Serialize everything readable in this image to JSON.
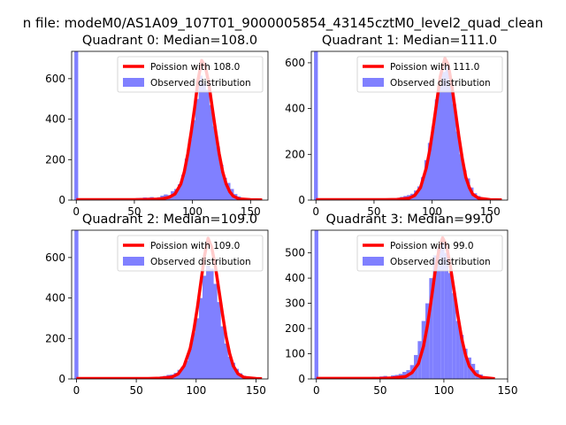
{
  "figure": {
    "suptitle": "n file: modeM0/AS1A09_107T01_9000005854_43145cztM0_level2_quad_clean"
  },
  "colors": {
    "hist": "#8080ff",
    "curve": "#ff0000",
    "axis": "#000000",
    "background": "#ffffff"
  },
  "chart_data": [
    {
      "type": "bar",
      "title": "Quadrant 0: Median=108.0",
      "xlim": [
        -4,
        165
      ],
      "ylim": [
        0,
        735
      ],
      "xticks": [
        0,
        50,
        100,
        150
      ],
      "yticks": [
        0,
        200,
        400,
        600
      ],
      "legend_position": "upper-right",
      "legend": {
        "curve": "Poission with 108.0",
        "hist": "Observed distribution"
      },
      "bin_width": 3.3,
      "spike": {
        "x": 0,
        "value": 735
      },
      "mean": 108,
      "hist": [
        [
          50,
          8
        ],
        [
          53,
          10
        ],
        [
          56,
          11
        ],
        [
          59,
          13
        ],
        [
          62,
          12
        ],
        [
          65,
          15
        ],
        [
          68,
          10
        ],
        [
          71,
          14
        ],
        [
          74,
          22
        ],
        [
          77,
          28
        ],
        [
          80,
          25
        ],
        [
          83,
          44
        ],
        [
          86,
          55
        ],
        [
          89,
          78
        ],
        [
          92,
          125
        ],
        [
          95,
          205
        ],
        [
          98,
          300
        ],
        [
          101,
          395
        ],
        [
          104,
          500
        ],
        [
          107,
          615
        ],
        [
          110,
          575
        ],
        [
          113,
          545
        ],
        [
          116,
          470
        ],
        [
          119,
          365
        ],
        [
          122,
          265
        ],
        [
          125,
          175
        ],
        [
          128,
          110
        ],
        [
          131,
          85
        ],
        [
          134,
          55
        ],
        [
          137,
          30
        ],
        [
          140,
          18
        ],
        [
          143,
          10
        ],
        [
          146,
          6
        ],
        [
          149,
          4
        ],
        [
          152,
          3
        ]
      ],
      "curve": [
        [
          0,
          2
        ],
        [
          50,
          2
        ],
        [
          60,
          3
        ],
        [
          70,
          5
        ],
        [
          75,
          8
        ],
        [
          80,
          14
        ],
        [
          85,
          30
        ],
        [
          90,
          80
        ],
        [
          93,
          140
        ],
        [
          96,
          230
        ],
        [
          99,
          340
        ],
        [
          102,
          460
        ],
        [
          105,
          600
        ],
        [
          108,
          690
        ],
        [
          111,
          660
        ],
        [
          114,
          580
        ],
        [
          117,
          460
        ],
        [
          120,
          340
        ],
        [
          123,
          230
        ],
        [
          126,
          140
        ],
        [
          129,
          80
        ],
        [
          132,
          42
        ],
        [
          135,
          20
        ],
        [
          140,
          6
        ],
        [
          150,
          2
        ],
        [
          160,
          1
        ]
      ]
    },
    {
      "type": "bar",
      "title": "Quadrant 1: Median=111.0",
      "xlim": [
        -4,
        165
      ],
      "ylim": [
        0,
        650
      ],
      "xticks": [
        0,
        50,
        100,
        150
      ],
      "yticks": [
        0,
        200,
        400,
        600
      ],
      "legend_position": "upper-right",
      "legend": {
        "curve": "Poission with 111.0",
        "hist": "Observed distribution"
      },
      "bin_width": 3.3,
      "spike": {
        "x": 0,
        "value": 650
      },
      "mean": 111,
      "hist": [
        [
          65,
          6
        ],
        [
          68,
          8
        ],
        [
          71,
          10
        ],
        [
          74,
          14
        ],
        [
          77,
          18
        ],
        [
          80,
          22
        ],
        [
          83,
          28
        ],
        [
          86,
          42
        ],
        [
          89,
          60
        ],
        [
          92,
          100
        ],
        [
          95,
          175
        ],
        [
          98,
          250
        ],
        [
          101,
          320
        ],
        [
          104,
          440
        ],
        [
          107,
          500
        ],
        [
          110,
          560
        ],
        [
          113,
          585
        ],
        [
          116,
          500
        ],
        [
          119,
          420
        ],
        [
          122,
          300
        ],
        [
          125,
          200
        ],
        [
          128,
          130
        ],
        [
          131,
          95
        ],
        [
          134,
          55
        ],
        [
          137,
          30
        ],
        [
          140,
          18
        ],
        [
          143,
          10
        ],
        [
          146,
          6
        ],
        [
          149,
          4
        ]
      ],
      "curve": [
        [
          0,
          2
        ],
        [
          60,
          2
        ],
        [
          70,
          3
        ],
        [
          80,
          8
        ],
        [
          85,
          20
        ],
        [
          90,
          55
        ],
        [
          95,
          140
        ],
        [
          98,
          220
        ],
        [
          101,
          320
        ],
        [
          104,
          430
        ],
        [
          107,
          540
        ],
        [
          111,
          620
        ],
        [
          114,
          590
        ],
        [
          117,
          500
        ],
        [
          120,
          390
        ],
        [
          123,
          280
        ],
        [
          126,
          180
        ],
        [
          129,
          100
        ],
        [
          132,
          55
        ],
        [
          135,
          25
        ],
        [
          140,
          8
        ],
        [
          150,
          2
        ],
        [
          160,
          1
        ]
      ]
    },
    {
      "type": "bar",
      "title": "Quadrant 2: Median=109.0",
      "xlim": [
        -4,
        160
      ],
      "ylim": [
        0,
        735
      ],
      "xticks": [
        0,
        50,
        100,
        150
      ],
      "yticks": [
        0,
        200,
        400,
        600
      ],
      "legend_position": "upper-right",
      "legend": {
        "curve": "Poission with 109.0",
        "hist": "Observed distribution"
      },
      "bin_width": 3.3,
      "spike": {
        "x": 0,
        "value": 735
      },
      "mean": 109,
      "hist": [
        [
          65,
          6
        ],
        [
          68,
          8
        ],
        [
          71,
          12
        ],
        [
          74,
          15
        ],
        [
          77,
          20
        ],
        [
          80,
          22
        ],
        [
          83,
          30
        ],
        [
          86,
          45
        ],
        [
          89,
          60
        ],
        [
          92,
          90
        ],
        [
          95,
          150
        ],
        [
          98,
          230
        ],
        [
          101,
          300
        ],
        [
          104,
          400
        ],
        [
          107,
          510
        ],
        [
          110,
          560
        ],
        [
          113,
          545
        ],
        [
          116,
          470
        ],
        [
          119,
          380
        ],
        [
          122,
          260
        ],
        [
          125,
          175
        ],
        [
          128,
          110
        ],
        [
          131,
          80
        ],
        [
          134,
          50
        ],
        [
          137,
          28
        ],
        [
          140,
          16
        ],
        [
          143,
          8
        ],
        [
          146,
          5
        ]
      ],
      "curve": [
        [
          0,
          2
        ],
        [
          60,
          2
        ],
        [
          70,
          4
        ],
        [
          80,
          10
        ],
        [
          85,
          25
        ],
        [
          90,
          65
        ],
        [
          95,
          150
        ],
        [
          98,
          240
        ],
        [
          101,
          350
        ],
        [
          104,
          480
        ],
        [
          107,
          610
        ],
        [
          110,
          695
        ],
        [
          113,
          650
        ],
        [
          116,
          560
        ],
        [
          119,
          440
        ],
        [
          122,
          320
        ],
        [
          125,
          210
        ],
        [
          128,
          125
        ],
        [
          131,
          65
        ],
        [
          135,
          25
        ],
        [
          140,
          8
        ],
        [
          150,
          2
        ],
        [
          155,
          1
        ]
      ]
    },
    {
      "type": "bar",
      "title": "Quadrant 3: Median=99.0",
      "xlim": [
        -4,
        150
      ],
      "ylim": [
        0,
        590
      ],
      "xticks": [
        0,
        50,
        100,
        150
      ],
      "yticks": [
        0,
        100,
        200,
        300,
        400,
        500
      ],
      "legend_position": "upper-right",
      "legend": {
        "curve": "Poission with 99.0",
        "hist": "Observed distribution"
      },
      "bin_width": 3.0,
      "spike": {
        "x": 0,
        "value": 590
      },
      "mean": 99,
      "hist": [
        [
          35,
          4
        ],
        [
          40,
          6
        ],
        [
          45,
          8
        ],
        [
          48,
          7
        ],
        [
          51,
          10
        ],
        [
          54,
          12
        ],
        [
          57,
          9
        ],
        [
          60,
          14
        ],
        [
          63,
          16
        ],
        [
          66,
          20
        ],
        [
          69,
          28
        ],
        [
          72,
          35
        ],
        [
          75,
          55
        ],
        [
          78,
          95
        ],
        [
          81,
          150
        ],
        [
          84,
          230
        ],
        [
          87,
          300
        ],
        [
          90,
          400
        ],
        [
          93,
          490
        ],
        [
          96,
          520
        ],
        [
          99,
          555
        ],
        [
          102,
          500
        ],
        [
          105,
          420
        ],
        [
          108,
          340
        ],
        [
          111,
          230
        ],
        [
          114,
          175
        ],
        [
          117,
          120
        ],
        [
          120,
          85
        ],
        [
          123,
          60
        ],
        [
          126,
          35
        ],
        [
          129,
          18
        ],
        [
          132,
          10
        ],
        [
          135,
          6
        ]
      ],
      "curve": [
        [
          0,
          2
        ],
        [
          50,
          2
        ],
        [
          60,
          4
        ],
        [
          70,
          10
        ],
        [
          75,
          25
        ],
        [
          80,
          60
        ],
        [
          84,
          130
        ],
        [
          87,
          210
        ],
        [
          90,
          310
        ],
        [
          93,
          420
        ],
        [
          96,
          510
        ],
        [
          99,
          560
        ],
        [
          102,
          530
        ],
        [
          105,
          450
        ],
        [
          108,
          350
        ],
        [
          111,
          250
        ],
        [
          114,
          160
        ],
        [
          117,
          95
        ],
        [
          120,
          50
        ],
        [
          125,
          18
        ],
        [
          130,
          6
        ],
        [
          140,
          1
        ]
      ]
    }
  ]
}
